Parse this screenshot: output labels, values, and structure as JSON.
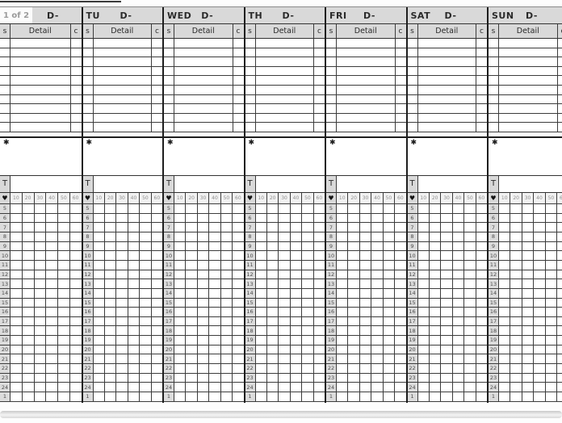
{
  "page": {
    "indicator": "1 of 2"
  },
  "days": [
    {
      "name": "",
      "date_label": "D-"
    },
    {
      "name": "TU",
      "date_label": "D-"
    },
    {
      "name": "WED",
      "date_label": "D-"
    },
    {
      "name": "TH",
      "date_label": "D-"
    },
    {
      "name": "FRI",
      "date_label": "D-"
    },
    {
      "name": "SAT",
      "date_label": "D-"
    },
    {
      "name": "SUN",
      "date_label": "D-"
    }
  ],
  "detail_columns": {
    "status": "s",
    "detail": "Detail",
    "check": "c"
  },
  "detail_row_count": 10,
  "notes_box": {
    "star_icon": "✱"
  },
  "total_row": {
    "label": "T"
  },
  "time_grid": {
    "heart_icon": "♥",
    "minute_headers": [
      "10",
      "20",
      "30",
      "40",
      "50",
      "60"
    ],
    "hour_labels": [
      "5",
      "6",
      "7",
      "8",
      "9",
      "10",
      "11",
      "12",
      "13",
      "14",
      "15",
      "16",
      "17",
      "18",
      "19",
      "20",
      "21",
      "22",
      "23",
      "24",
      "1"
    ]
  },
  "colors": {
    "header_bg": "#d9d9d9",
    "minute_header_bg": "#f2f2f2",
    "grid_line": "#3c3c3c",
    "day_border": "#1e1e1e",
    "muted_text": "#8f8f8f"
  }
}
